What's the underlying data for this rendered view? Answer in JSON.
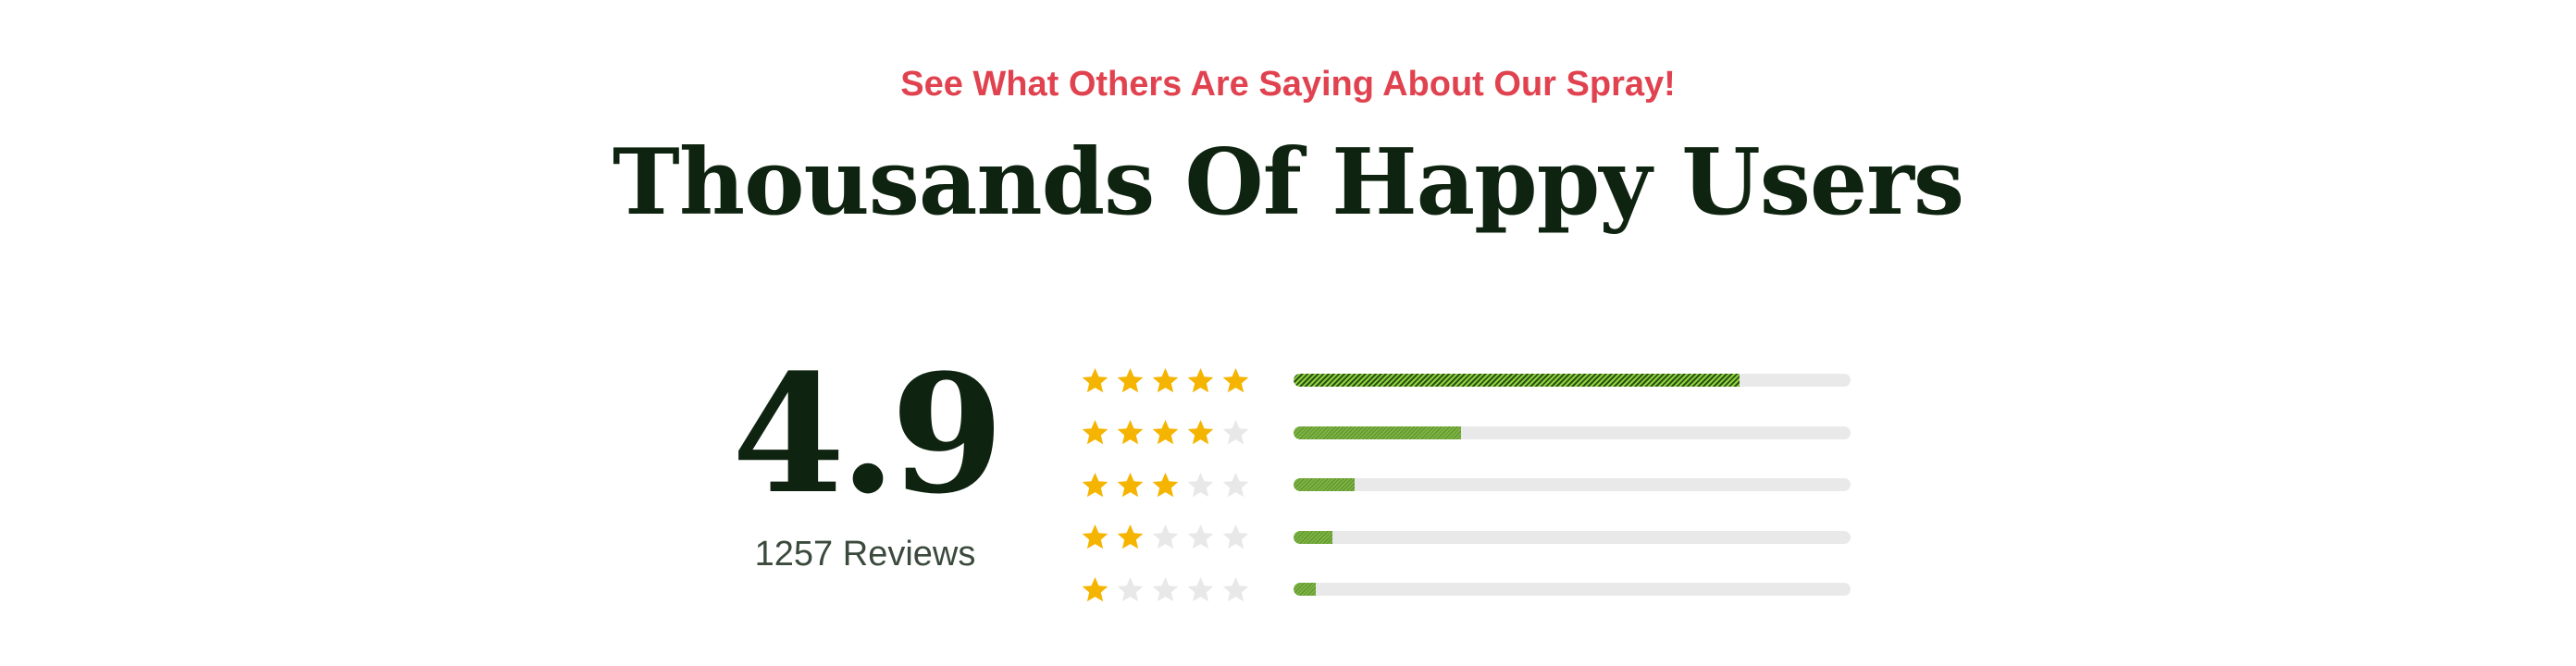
{
  "header": {
    "subtitle": "See What Others Are Saying About Our Spray!",
    "title": "Thousands Of Happy Users"
  },
  "summary": {
    "rating": "4.9",
    "reviews_label": "1257 Reviews"
  },
  "colors": {
    "subtitle": "#e0434f",
    "title": "#0f2410",
    "star_filled": "#f5b400",
    "star_empty": "#e8e8e8",
    "bar_fill": "#7cb342",
    "bar_track": "#e9e9e9"
  },
  "distribution": [
    {
      "stars": 5,
      "fraction": 0.8
    },
    {
      "stars": 4,
      "fraction": 0.3
    },
    {
      "stars": 3,
      "fraction": 0.11
    },
    {
      "stars": 2,
      "fraction": 0.07
    },
    {
      "stars": 1,
      "fraction": 0.04
    }
  ]
}
